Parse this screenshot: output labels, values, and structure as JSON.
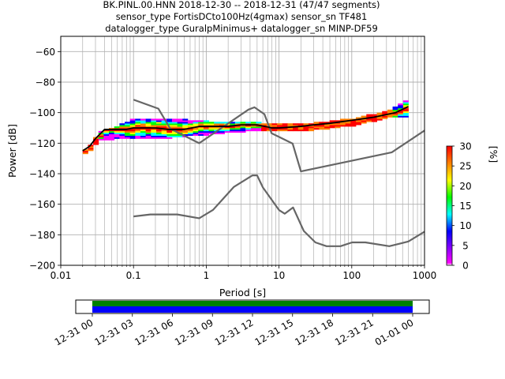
{
  "chart_data": {
    "type": "line",
    "title_lines": [
      "BK.PINL.00.HNN   2018-12-30 -- 2018-12-31  (47/47 segments)",
      "sensor_type FortisDCto100Hz(4gmax) sensor_sn TF481",
      "datalogger_type GuralpMinimus+ datalogger_sn MINP-DF59"
    ],
    "xlabel": "Period [s]",
    "ylabel": "Power [dB]",
    "xscale": "log",
    "xlim": [
      0.01,
      1000
    ],
    "ylim": [
      -200,
      -50
    ],
    "x_ticks": [
      {
        "v": 0.01,
        "label": "0.01"
      },
      {
        "v": 0.1,
        "label": "0.1"
      },
      {
        "v": 1,
        "label": "1"
      },
      {
        "v": 10,
        "label": "10"
      },
      {
        "v": 100,
        "label": "100"
      },
      {
        "v": 1000,
        "label": "1000"
      }
    ],
    "y_ticks": [
      {
        "v": -60,
        "label": "−60"
      },
      {
        "v": -80,
        "label": "−80"
      },
      {
        "v": -100,
        "label": "−100"
      },
      {
        "v": -120,
        "label": "−120"
      },
      {
        "v": -140,
        "label": "−140"
      },
      {
        "v": -160,
        "label": "−160"
      },
      {
        "v": -180,
        "label": "−180"
      },
      {
        "v": -200,
        "label": "−200"
      }
    ],
    "grid": true,
    "series": [
      {
        "role": "high-noise-model",
        "color": "#666666",
        "x": [
          0.1,
          0.22,
          0.32,
          0.8,
          3.8,
          4.6,
          6.3,
          7.9,
          15.4,
          20,
          354.8,
          1000
        ],
        "y": [
          -91.5,
          -97.4,
          -110.5,
          -120,
          -98,
          -96.5,
          -101,
          -113.5,
          -120.3,
          -138.5,
          -126,
          -111.7
        ]
      },
      {
        "role": "low-noise-model",
        "color": "#666666",
        "x": [
          0.1,
          0.17,
          0.4,
          0.8,
          1.24,
          2.4,
          4.3,
          5,
          6,
          10,
          12,
          15.6,
          21.9,
          31.6,
          45,
          70,
          101,
          154,
          328,
          600,
          1000
        ],
        "y": [
          -168,
          -166.7,
          -166.7,
          -169.2,
          -163.7,
          -148.6,
          -141.1,
          -141.1,
          -149,
          -163.8,
          -166.2,
          -162.1,
          -177.5,
          -185,
          -187.5,
          -187.5,
          -185,
          -185,
          -187.5,
          -184.4,
          -178
        ]
      },
      {
        "role": "mode",
        "color": "#000000",
        "x": [
          0.02,
          0.025,
          0.03,
          0.04,
          0.05,
          0.08,
          0.1,
          0.2,
          0.3,
          0.5,
          0.8,
          1,
          2,
          3,
          5,
          8,
          10,
          20,
          30,
          50,
          100,
          200,
          400,
          600
        ],
        "y": [
          -125,
          -122,
          -117,
          -111,
          -111,
          -111,
          -110,
          -110,
          -111,
          -111,
          -109,
          -109,
          -109,
          -108,
          -108,
          -110,
          -110,
          -109,
          -108,
          -107,
          -105,
          -103,
          -100,
          -96
        ]
      }
    ],
    "histogram_bands": {
      "x": [
        0.02,
        0.025,
        0.03,
        0.05,
        0.1,
        0.2,
        0.5,
        1,
        3,
        10,
        30,
        100,
        300,
        600
      ],
      "top": [
        -124,
        -121,
        -113,
        -110,
        -104,
        -104,
        -105,
        -106,
        -106,
        -108,
        -107,
        -104,
        -99,
        -90
      ],
      "bottom": [
        -127,
        -124,
        -118,
        -117,
        -116,
        -117,
        -115,
        -114,
        -112,
        -112,
        -111,
        -108,
        -103,
        -102
      ]
    },
    "colorbar": {
      "label": "[%]",
      "range": [
        0,
        30
      ],
      "ticks": [
        "0",
        "5",
        "10",
        "15",
        "20",
        "25",
        "30"
      ],
      "colors": [
        "#ffffff",
        "#ff00ff",
        "#0000ff",
        "#00ffff",
        "#00ff00",
        "#ffff00",
        "#ff8000",
        "#ff0000"
      ]
    },
    "coverage": {
      "ticks": [
        "12-31 00",
        "12-31 03",
        "12-31 06",
        "12-31 09",
        "12-31 12",
        "12-31 15",
        "12-31 18",
        "12-31 21",
        "01-01 00"
      ],
      "data_color": "#0000ff",
      "segment_color": "#008000"
    }
  }
}
